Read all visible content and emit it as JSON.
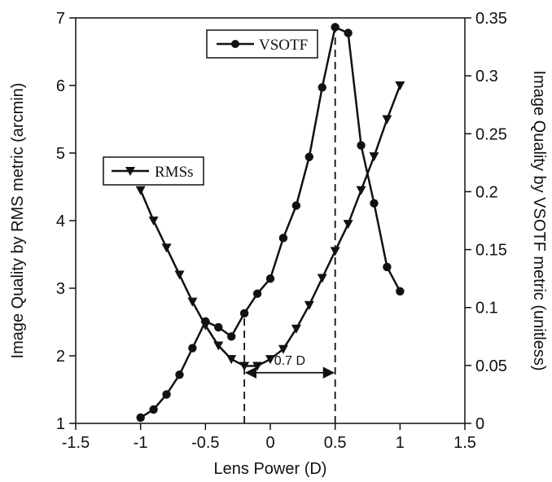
{
  "chart_data": {
    "type": "line",
    "title": "",
    "xlabel": "Lens Power (D)",
    "ylabel_left": "Image Quality by RMS metric (arcmin)",
    "ylabel_right": "Image Quality by VSOTF metric (unitless)",
    "xlim": [
      -1.5,
      1.5
    ],
    "ylim_left": [
      1,
      7
    ],
    "ylim_right": [
      0,
      0.35
    ],
    "x_ticks": [
      "-1.5",
      "-1",
      "-0.5",
      "0",
      "0.5",
      "1",
      "1.5"
    ],
    "y_left_ticks": [
      "1",
      "2",
      "3",
      "4",
      "5",
      "6",
      "7"
    ],
    "y_right_ticks": [
      "0",
      "0.05",
      "0.1",
      "0.15",
      "0.2",
      "0.25",
      "0.3",
      "0.35"
    ],
    "grid": false,
    "series": [
      {
        "name": "RMSs",
        "axis": "left",
        "marker": "triangle-down",
        "x": [
          -1.0,
          -0.9,
          -0.8,
          -0.7,
          -0.6,
          -0.5,
          -0.4,
          -0.3,
          -0.2,
          -0.1,
          0.0,
          0.1,
          0.2,
          0.3,
          0.4,
          0.5,
          0.6,
          0.7,
          0.8,
          0.9,
          1.0
        ],
        "y": [
          4.45,
          4.0,
          3.6,
          3.2,
          2.8,
          2.45,
          2.15,
          1.95,
          1.85,
          1.85,
          1.95,
          2.1,
          2.4,
          2.75,
          3.15,
          3.55,
          3.95,
          4.45,
          4.95,
          5.5,
          6.0
        ]
      },
      {
        "name": "VSOTF",
        "axis": "right",
        "marker": "circle",
        "x": [
          -1.0,
          -0.9,
          -0.8,
          -0.7,
          -0.6,
          -0.5,
          -0.4,
          -0.3,
          -0.2,
          -0.1,
          0.0,
          0.1,
          0.2,
          0.3,
          0.4,
          0.5,
          0.6,
          0.7,
          0.8,
          0.9,
          1.0
        ],
        "y": [
          0.005,
          0.012,
          0.025,
          0.042,
          0.065,
          0.088,
          0.083,
          0.075,
          0.095,
          0.112,
          0.125,
          0.16,
          0.188,
          0.23,
          0.29,
          0.342,
          0.337,
          0.24,
          0.19,
          0.135,
          0.114
        ]
      }
    ],
    "reference_lines": [
      {
        "x": -0.2,
        "style": "dashed"
      },
      {
        "x": 0.5,
        "style": "dashed"
      }
    ],
    "annotations": [
      {
        "type": "double-arrow",
        "x_from": -0.2,
        "x_to": 0.5,
        "y_left": 1.75,
        "label": "0.7 D"
      }
    ],
    "legends": [
      {
        "series": "VSOTF",
        "label": "VSOTF",
        "placement": "top-center"
      },
      {
        "series": "RMSs",
        "label": "RMSs",
        "placement": "upper-left"
      }
    ]
  }
}
